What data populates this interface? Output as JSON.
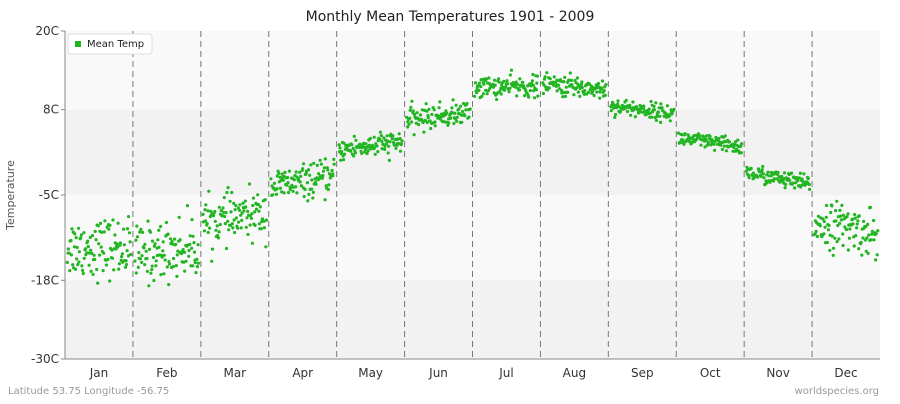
{
  "chart_data": {
    "type": "scatter",
    "title": "Monthly Mean Temperatures 1901 - 2009",
    "ylabel": "Temperature",
    "xlabel": "",
    "ylim": [
      -30,
      20
    ],
    "yticks": [
      {
        "value": 20,
        "label": "20C"
      },
      {
        "value": 8,
        "label": "8C"
      },
      {
        "value": -5,
        "label": "-5C"
      },
      {
        "value": -18,
        "label": "-18C"
      },
      {
        "value": -30,
        "label": "-30C"
      }
    ],
    "categories": [
      "Jan",
      "Feb",
      "Mar",
      "Apr",
      "May",
      "Jun",
      "Jul",
      "Aug",
      "Sep",
      "Oct",
      "Nov",
      "Dec"
    ],
    "series": [
      {
        "name": "Mean Temp",
        "color": "#22b522",
        "years": [
          1901,
          2009
        ],
        "months": [
          {
            "month": "Jan",
            "center": -13.0,
            "spread": 4.5
          },
          {
            "month": "Feb",
            "center": -13.5,
            "spread": 4.5
          },
          {
            "month": "Mar",
            "center": -8.5,
            "spread": 3.5
          },
          {
            "month": "Apr",
            "center": -3.0,
            "spread": 2.5
          },
          {
            "month": "May",
            "center": 2.5,
            "spread": 1.8
          },
          {
            "month": "Jun",
            "center": 7.0,
            "spread": 1.8
          },
          {
            "month": "Jul",
            "center": 11.5,
            "spread": 1.6
          },
          {
            "month": "Aug",
            "center": 11.5,
            "spread": 1.6
          },
          {
            "month": "Sep",
            "center": 8.0,
            "spread": 1.2
          },
          {
            "month": "Oct",
            "center": 3.0,
            "spread": 1.2
          },
          {
            "month": "Nov",
            "center": -2.5,
            "spread": 1.3
          },
          {
            "month": "Dec",
            "center": -10.0,
            "spread": 3.5
          }
        ]
      }
    ],
    "legend": {
      "position": "top-left"
    },
    "grid": true
  },
  "footer": {
    "left": "Latitude 53.75 Longitude -56.75",
    "right": "worldspecies.org"
  },
  "colors": {
    "series": "#22b522",
    "bandLight": "#f9f9f9",
    "bandDark": "#f2f2f2",
    "divider": "#777777"
  }
}
